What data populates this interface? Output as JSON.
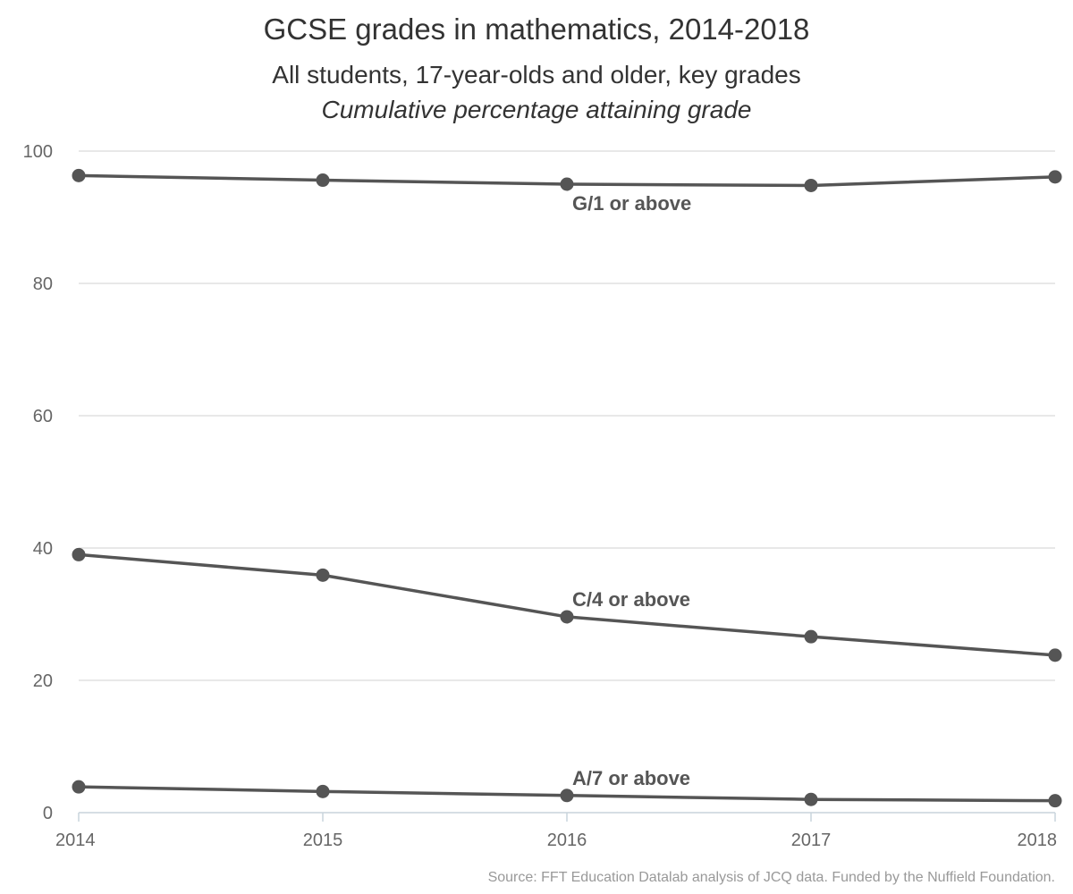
{
  "chart_data": {
    "type": "line",
    "title": "GCSE grades in mathematics, 2014-2018",
    "subtitle": "All students, 17-year-olds and older, key grades",
    "subtitle2": "Cumulative percentage attaining grade",
    "xlabel": "",
    "ylabel": "",
    "x": [
      "2014",
      "2015",
      "2016",
      "2017",
      "2018"
    ],
    "ylim": [
      0,
      100
    ],
    "yticks": [
      "0",
      "20",
      "40",
      "60",
      "80",
      "100"
    ],
    "grid": true,
    "series": [
      {
        "name": "G/1 or above",
        "values": [
          96.3,
          95.6,
          95.0,
          94.8,
          96.1
        ],
        "label_at": "2016"
      },
      {
        "name": "C/4 or above",
        "values": [
          39.0,
          35.9,
          29.6,
          26.6,
          23.8
        ],
        "label_at": "2016"
      },
      {
        "name": "A/7 or above",
        "values": [
          3.9,
          3.2,
          2.6,
          2.0,
          1.8
        ],
        "label_at": "2016"
      }
    ],
    "line_color": "#555555",
    "grid_color": "#e0e0e0",
    "axis_color": "#c8d4dc",
    "source": "Source: FFT Education Datalab analysis of JCQ data. Funded by the Nuffield Foundation."
  }
}
